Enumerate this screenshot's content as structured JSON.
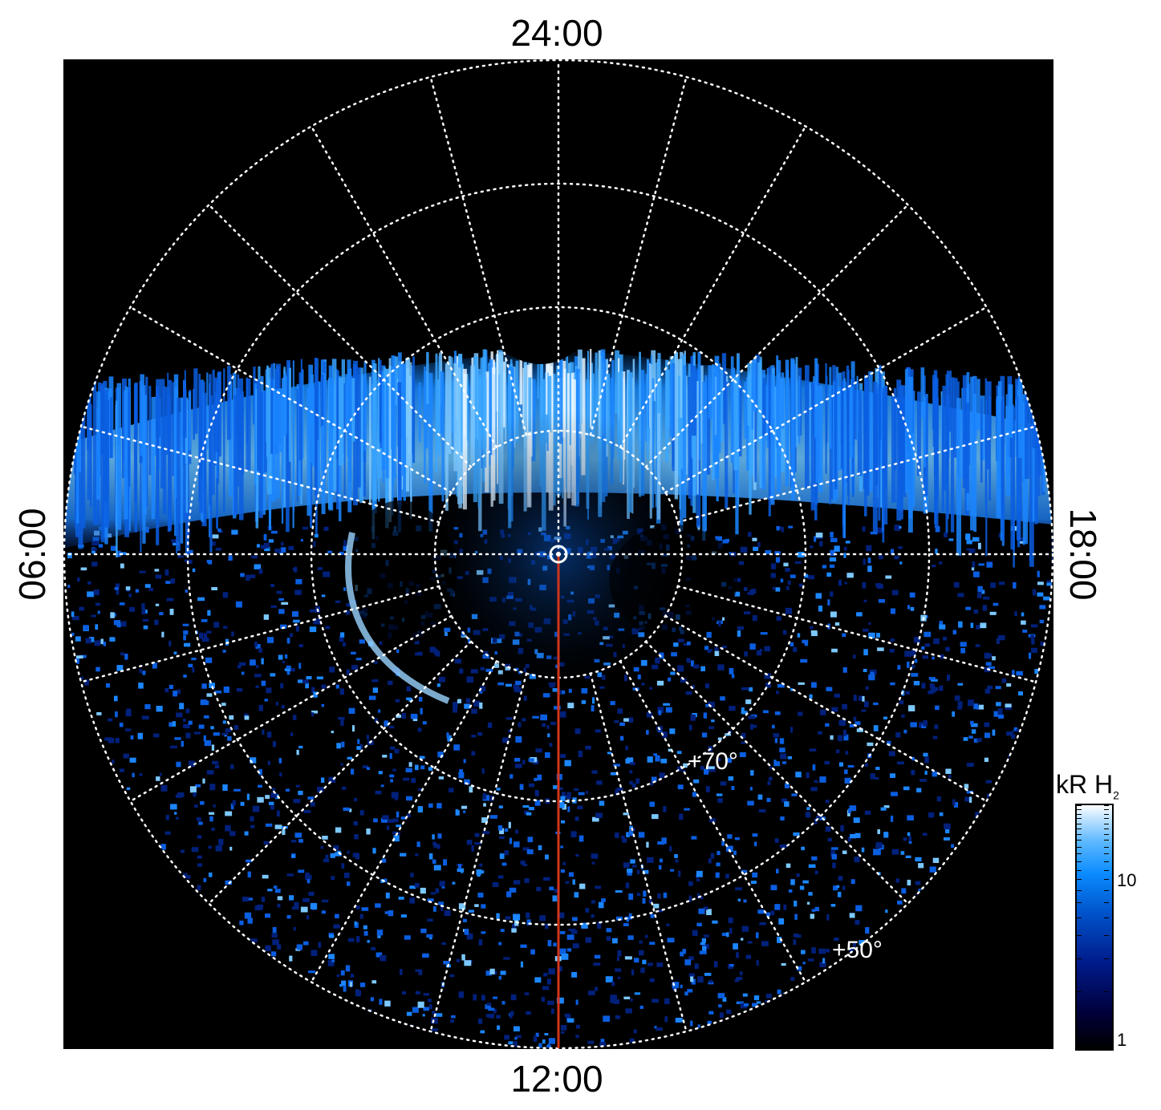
{
  "chart_data": {
    "type": "heatmap",
    "projection": "polar",
    "local_time_labels": {
      "top": "24:00",
      "bottom": "12:00",
      "left": "06:00",
      "right": "18:00"
    },
    "latitude_labels": [
      "+70°",
      "+50°"
    ],
    "latitude_grid": [
      80,
      70,
      60,
      50
    ],
    "longitude_grid_step_hours": 1,
    "grid": true,
    "grid_color": "#ffffff",
    "colorbar": {
      "unit_label": "kR H",
      "unit_subscript": "2",
      "scale": "log",
      "ticks": [
        "1",
        "10"
      ],
      "range": [
        1,
        20
      ]
    },
    "meridian_line_color": "#d0341a",
    "colors": {
      "background": "#000000",
      "low": "#00003a",
      "mid": "#0a8cff",
      "high": "#ffffff"
    }
  }
}
